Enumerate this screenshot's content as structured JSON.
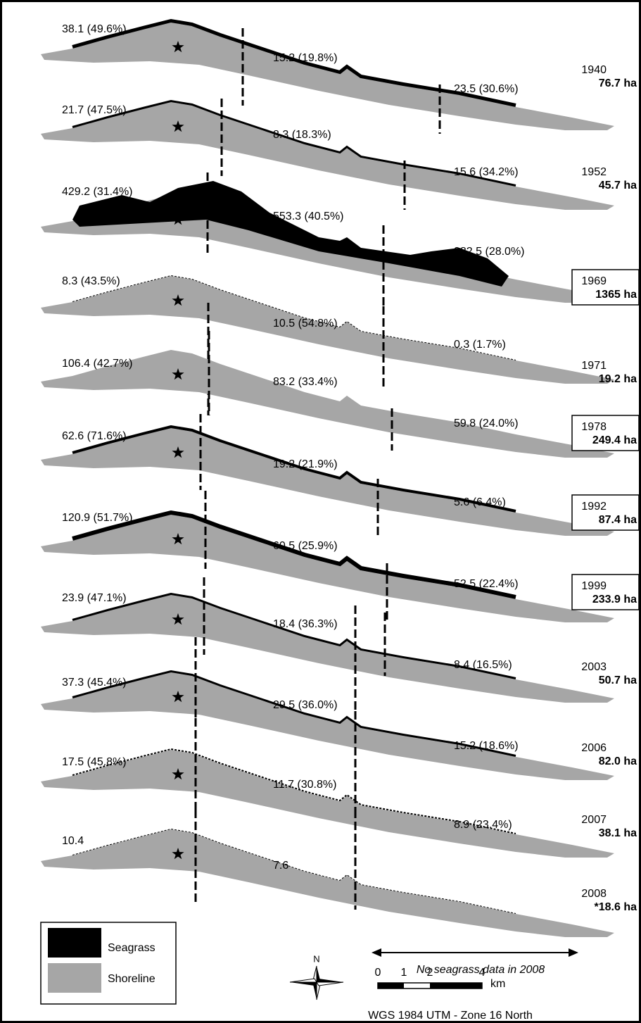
{
  "panels": [
    {
      "west": "38.1 (49.6%)",
      "central": "15.2 (19.8%)",
      "east": "23.5 (30.6%)",
      "year": "1940",
      "total": "76.7 ha",
      "boxed": false
    },
    {
      "west": "21.7 (47.5%)",
      "central": "8.3 (18.3%)",
      "east": "15.6 (34.2%)",
      "year": "1952",
      "total": "45.7 ha",
      "boxed": false
    },
    {
      "west": "429.2 (31.4%)",
      "central": "553.3 (40.5%)",
      "east": "382.5 (28.0%)",
      "year": "1969",
      "total": "1365 ha",
      "boxed": true
    },
    {
      "west": "8.3 (43.5%)",
      "central": "10.5 (54.8%)",
      "east": "0.3 (1.7%)",
      "year": "1971",
      "total": "19.2 ha",
      "boxed": false
    },
    {
      "west": "106.4 (42.7%)",
      "central": "83.2 (33.4%)",
      "east": "59.8 (24.0%)",
      "year": "1978",
      "total": "249.4 ha",
      "boxed": true
    },
    {
      "west": "62.6 (71.6%)",
      "central": "19.2 (21.9%)",
      "east": "5.6 (6.4%)",
      "year": "1992",
      "total": "87.4 ha",
      "boxed": true
    },
    {
      "west": "120.9 (51.7%)",
      "central": "60.5 (25.9%)",
      "east": "52.5 (22.4%)",
      "year": "1999",
      "total": "233.9 ha",
      "boxed": true
    },
    {
      "west": "23.9 (47.1%)",
      "central": "18.4 (36.3%)",
      "east": "8.4 (16.5%)",
      "year": "2003",
      "total": "50.7 ha",
      "boxed": false
    },
    {
      "west": "37.3 (45.4%)",
      "central": "29.5 (36.0%)",
      "east": "15.2 (18.6%)",
      "year": "2006",
      "total": "82.0 ha",
      "boxed": false
    },
    {
      "west": "17.5 (45.8%)",
      "central": "11.7 (30.8%)",
      "east": "8.9 (23.4%)",
      "year": "2007",
      "total": "38.1 ha",
      "boxed": false
    },
    {
      "west": "10.4",
      "central": "7.6",
      "year": "2008",
      "total": "*18.6 ha",
      "boxed": false
    }
  ],
  "note": "No seagrass data in 2008",
  "legend": [
    "Seagrass",
    "Shoreline"
  ],
  "north": "N",
  "scale": {
    "ticks": [
      0,
      1,
      2,
      4
    ],
    "unit": "km"
  },
  "projection": "WGS 1984 UTM - Zone 16 North"
}
